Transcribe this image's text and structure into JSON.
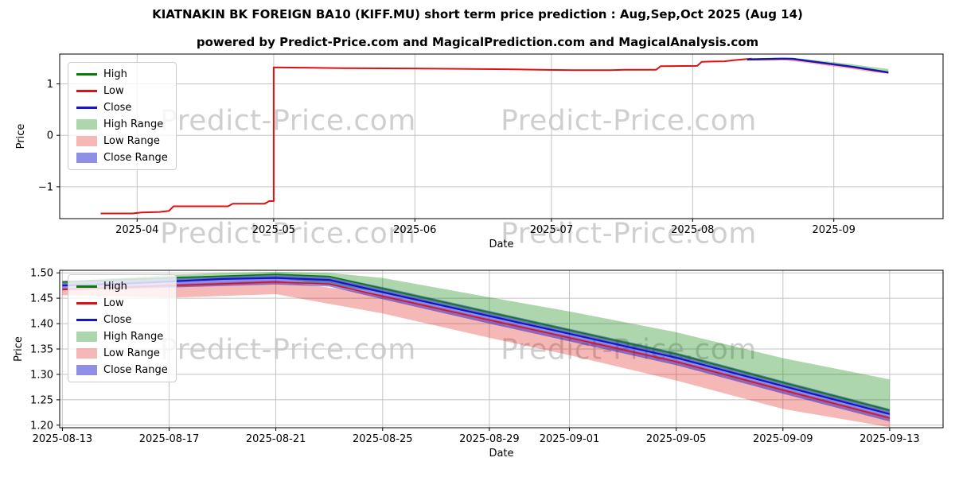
{
  "header": {
    "title": "KIATNAKIN BK FOREIGN BA10 (KIFF.MU) short term price prediction : Aug,Sep,Oct 2025 (Aug 14)",
    "subtitle": "powered by Predict-Price.com and MagicalPrediction.com and MagicalAnalysis.com"
  },
  "watermark": {
    "text": "Predict-Price.com",
    "color": "rgba(130,130,130,0.38)"
  },
  "colors": {
    "high": "#0a7a0a",
    "low": "#dd1111",
    "close": "#1414c8",
    "high_range": "rgba(0,128,0,0.32)",
    "low_range": "rgba(224,16,16,0.30)",
    "close_range": "rgba(20,20,200,0.48)",
    "grid": "#c3c3c3",
    "axis": "#000000"
  },
  "legend": {
    "items": [
      {
        "label": "High",
        "swatch": "line",
        "color_key": "high"
      },
      {
        "label": "Low",
        "swatch": "line",
        "color_key": "low"
      },
      {
        "label": "Close",
        "swatch": "line",
        "color_key": "close"
      },
      {
        "label": "High Range",
        "swatch": "patch",
        "color_key": "high_range"
      },
      {
        "label": "Low Range",
        "swatch": "patch",
        "color_key": "low_range"
      },
      {
        "label": "Close Range",
        "swatch": "patch",
        "color_key": "close_range"
      }
    ]
  },
  "chart_data": [
    {
      "id": "history",
      "type": "line",
      "xlabel": "Date",
      "ylabel": "Price",
      "x_unit": "days since 2025-03-15",
      "xlim": [
        0,
        194
      ],
      "ylim": [
        -1.62,
        1.58
      ],
      "x_ticks": [
        {
          "day": 17,
          "label": "2025-04"
        },
        {
          "day": 47,
          "label": "2025-05"
        },
        {
          "day": 78,
          "label": "2025-06"
        },
        {
          "day": 108,
          "label": "2025-07"
        },
        {
          "day": 139,
          "label": "2025-08"
        },
        {
          "day": 170,
          "label": "2025-09"
        }
      ],
      "y_ticks": [
        {
          "value": 1,
          "label": "1"
        },
        {
          "value": 0,
          "label": "0"
        },
        {
          "value": -1,
          "label": "−1"
        }
      ],
      "bands": [
        {
          "name": "high-range-band",
          "color_key": "high_range",
          "upper": [
            [
              151,
              1.483
            ],
            [
              155,
              1.496
            ],
            [
              157,
              1.5
            ],
            [
              159,
              1.502
            ],
            [
              161,
              1.5
            ],
            [
              163,
              1.49
            ],
            [
              167,
              1.452
            ],
            [
              170,
              1.424
            ],
            [
              174,
              1.383
            ],
            [
              178,
              1.332
            ],
            [
              182,
              1.29
            ]
          ],
          "lower": [
            [
              151,
              1.475
            ],
            [
              159,
              1.49
            ],
            [
              163,
              1.462
            ],
            [
              167,
              1.417
            ],
            [
              170,
              1.382
            ],
            [
              174,
              1.335
            ],
            [
              178,
              1.279
            ],
            [
              182,
              1.224
            ]
          ]
        },
        {
          "name": "low-range-band",
          "color_key": "low_range",
          "upper": [
            [
              151,
              1.47
            ],
            [
              159,
              1.485
            ],
            [
              163,
              1.457
            ],
            [
              167,
              1.41
            ],
            [
              170,
              1.375
            ],
            [
              174,
              1.328
            ],
            [
              178,
              1.272
            ],
            [
              182,
              1.217
            ]
          ],
          "lower": [
            [
              151,
              1.456
            ],
            [
              155,
              1.451
            ],
            [
              159,
              1.458
            ],
            [
              163,
              1.42
            ],
            [
              167,
              1.372
            ],
            [
              170,
              1.338
            ],
            [
              174,
              1.288
            ],
            [
              178,
              1.232
            ],
            [
              182,
              1.196
            ]
          ]
        },
        {
          "name": "close-range-band",
          "color_key": "close_range",
          "upper": [
            [
              151,
              1.484
            ],
            [
              155,
              1.492
            ],
            [
              159,
              1.497
            ],
            [
              161,
              1.494
            ],
            [
              163,
              1.472
            ],
            [
              167,
              1.425
            ],
            [
              170,
              1.39
            ],
            [
              174,
              1.343
            ],
            [
              178,
              1.287
            ],
            [
              182,
              1.232
            ]
          ],
          "lower": [
            [
              151,
              1.466
            ],
            [
              155,
              1.471
            ],
            [
              159,
              1.477
            ],
            [
              161,
              1.473
            ],
            [
              163,
              1.448
            ],
            [
              167,
              1.4
            ],
            [
              170,
              1.365
            ],
            [
              174,
              1.318
            ],
            [
              178,
              1.262
            ],
            [
              182,
              1.207
            ]
          ]
        }
      ],
      "series": [
        {
          "name": "low-history-line",
          "legend": "Low",
          "color_key": "low",
          "width": 2,
          "points": [
            [
              9,
              -1.52
            ],
            [
              16,
              -1.52
            ],
            [
              18,
              -1.5
            ],
            [
              22,
              -1.49
            ],
            [
              24,
              -1.47
            ],
            [
              25,
              -1.38
            ],
            [
              37,
              -1.38
            ],
            [
              38,
              -1.33
            ],
            [
              45,
              -1.33
            ],
            [
              46,
              -1.28
            ],
            [
              47,
              -1.28
            ],
            [
              47,
              1.32
            ],
            [
              53,
              1.315
            ],
            [
              62,
              1.305
            ],
            [
              77,
              1.3
            ],
            [
              88,
              1.292
            ],
            [
              100,
              1.283
            ],
            [
              107,
              1.272
            ],
            [
              113,
              1.266
            ],
            [
              121,
              1.266
            ],
            [
              124,
              1.276
            ],
            [
              131,
              1.276
            ],
            [
              132,
              1.345
            ],
            [
              140,
              1.35
            ],
            [
              141,
              1.43
            ],
            [
              146,
              1.44
            ],
            [
              148,
              1.46
            ],
            [
              150,
              1.475
            ],
            [
              152,
              1.49
            ]
          ]
        },
        {
          "name": "high-forecast-line",
          "legend": "High",
          "color_key": "high",
          "width": 1.6,
          "points": [
            [
              151,
              1.482
            ],
            [
              155,
              1.49
            ],
            [
              159,
              1.497
            ],
            [
              161,
              1.493
            ],
            [
              163,
              1.469
            ],
            [
              167,
              1.422
            ],
            [
              170,
              1.387
            ],
            [
              174,
              1.34
            ],
            [
              178,
              1.284
            ],
            [
              182,
              1.229
            ]
          ]
        },
        {
          "name": "low-forecast-line",
          "legend": "Low",
          "color_key": "low",
          "width": 1.6,
          "points": [
            [
              151,
              1.467
            ],
            [
              155,
              1.475
            ],
            [
              159,
              1.482
            ],
            [
              161,
              1.478
            ],
            [
              163,
              1.454
            ],
            [
              167,
              1.407
            ],
            [
              170,
              1.372
            ],
            [
              174,
              1.325
            ],
            [
              178,
              1.269
            ],
            [
              182,
              1.214
            ]
          ]
        },
        {
          "name": "close-forecast-line",
          "legend": "Close",
          "color_key": "close",
          "width": 2.2,
          "points": [
            [
              151,
              1.475
            ],
            [
              153,
              1.478
            ],
            [
              155,
              1.483
            ],
            [
              157,
              1.488
            ],
            [
              159,
              1.49
            ],
            [
              161,
              1.486
            ],
            [
              163,
              1.462
            ],
            [
              167,
              1.415
            ],
            [
              170,
              1.38
            ],
            [
              174,
              1.333
            ],
            [
              178,
              1.277
            ],
            [
              182,
              1.222
            ]
          ]
        }
      ]
    },
    {
      "id": "forecast",
      "type": "line",
      "xlabel": "Date",
      "ylabel": "Price",
      "x_unit": "days since 2025-08-13",
      "xlim": [
        -0.1,
        33
      ],
      "ylim": [
        1.195,
        1.505
      ],
      "x_ticks": [
        {
          "day": 0,
          "label": "2025-08-13"
        },
        {
          "day": 4,
          "label": "2025-08-17"
        },
        {
          "day": 8,
          "label": "2025-08-21"
        },
        {
          "day": 12,
          "label": "2025-08-25"
        },
        {
          "day": 16,
          "label": "2025-08-29"
        },
        {
          "day": 19,
          "label": "2025-09-01"
        },
        {
          "day": 23,
          "label": "2025-09-05"
        },
        {
          "day": 27,
          "label": "2025-09-09"
        },
        {
          "day": 31,
          "label": "2025-09-13"
        }
      ],
      "y_ticks": [
        {
          "value": 1.5,
          "label": "1.50"
        },
        {
          "value": 1.45,
          "label": "1.45"
        },
        {
          "value": 1.4,
          "label": "1.40"
        },
        {
          "value": 1.35,
          "label": "1.35"
        },
        {
          "value": 1.3,
          "label": "1.30"
        },
        {
          "value": 1.25,
          "label": "1.25"
        },
        {
          "value": 1.2,
          "label": "1.20"
        }
      ],
      "bands": [
        {
          "name": "high-range-band",
          "color_key": "high_range",
          "upper": [
            [
              0,
              1.483
            ],
            [
              4,
              1.496
            ],
            [
              6,
              1.5
            ],
            [
              8,
              1.502
            ],
            [
              10,
              1.5
            ],
            [
              12,
              1.49
            ],
            [
              16,
              1.452
            ],
            [
              19,
              1.424
            ],
            [
              23,
              1.383
            ],
            [
              27,
              1.332
            ],
            [
              31,
              1.29
            ]
          ],
          "lower": [
            [
              0,
              1.475
            ],
            [
              8,
              1.49
            ],
            [
              12,
              1.462
            ],
            [
              16,
              1.417
            ],
            [
              19,
              1.382
            ],
            [
              23,
              1.335
            ],
            [
              27,
              1.279
            ],
            [
              31,
              1.224
            ]
          ]
        },
        {
          "name": "low-range-band",
          "color_key": "low_range",
          "upper": [
            [
              0,
              1.47
            ],
            [
              8,
              1.485
            ],
            [
              12,
              1.457
            ],
            [
              16,
              1.41
            ],
            [
              19,
              1.375
            ],
            [
              23,
              1.328
            ],
            [
              27,
              1.272
            ],
            [
              31,
              1.217
            ]
          ],
          "lower": [
            [
              0,
              1.456
            ],
            [
              4,
              1.451
            ],
            [
              8,
              1.458
            ],
            [
              12,
              1.42
            ],
            [
              16,
              1.372
            ],
            [
              19,
              1.338
            ],
            [
              23,
              1.288
            ],
            [
              27,
              1.232
            ],
            [
              31,
              1.196
            ]
          ]
        },
        {
          "name": "close-range-band",
          "color_key": "close_range",
          "upper": [
            [
              0,
              1.484
            ],
            [
              4,
              1.492
            ],
            [
              8,
              1.497
            ],
            [
              10,
              1.494
            ],
            [
              12,
              1.472
            ],
            [
              16,
              1.425
            ],
            [
              19,
              1.39
            ],
            [
              23,
              1.343
            ],
            [
              27,
              1.287
            ],
            [
              31,
              1.232
            ]
          ],
          "lower": [
            [
              0,
              1.466
            ],
            [
              4,
              1.471
            ],
            [
              8,
              1.477
            ],
            [
              10,
              1.473
            ],
            [
              12,
              1.448
            ],
            [
              16,
              1.4
            ],
            [
              19,
              1.365
            ],
            [
              23,
              1.318
            ],
            [
              27,
              1.262
            ],
            [
              31,
              1.207
            ]
          ]
        }
      ],
      "series": [
        {
          "name": "high-line",
          "legend": "High",
          "color_key": "high",
          "width": 1.6,
          "points": [
            [
              0,
              1.482
            ],
            [
              4,
              1.49
            ],
            [
              8,
              1.497
            ],
            [
              10,
              1.493
            ],
            [
              12,
              1.469
            ],
            [
              16,
              1.422
            ],
            [
              19,
              1.387
            ],
            [
              23,
              1.34
            ],
            [
              27,
              1.284
            ],
            [
              31,
              1.229
            ]
          ]
        },
        {
          "name": "low-line",
          "legend": "Low",
          "color_key": "low",
          "width": 1.6,
          "points": [
            [
              0,
              1.467
            ],
            [
              4,
              1.475
            ],
            [
              8,
              1.482
            ],
            [
              10,
              1.478
            ],
            [
              12,
              1.454
            ],
            [
              16,
              1.407
            ],
            [
              19,
              1.372
            ],
            [
              23,
              1.325
            ],
            [
              27,
              1.269
            ],
            [
              31,
              1.214
            ]
          ]
        },
        {
          "name": "close-line",
          "legend": "Close",
          "color_key": "close",
          "width": 2.2,
          "points": [
            [
              0,
              1.475
            ],
            [
              2,
              1.478
            ],
            [
              4,
              1.483
            ],
            [
              6,
              1.488
            ],
            [
              8,
              1.49
            ],
            [
              10,
              1.486
            ],
            [
              12,
              1.462
            ],
            [
              16,
              1.415
            ],
            [
              19,
              1.38
            ],
            [
              23,
              1.333
            ],
            [
              27,
              1.277
            ],
            [
              31,
              1.222
            ]
          ]
        }
      ]
    }
  ]
}
